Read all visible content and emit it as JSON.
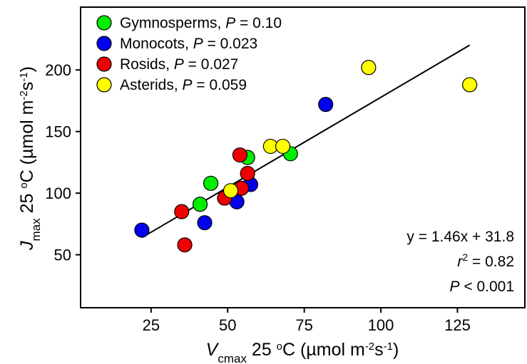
{
  "chart_data": {
    "type": "scatter",
    "x_axis": {
      "label_main": "V",
      "label_sub": "cmax",
      "label_rest_pre": " 25 ",
      "label_deg": "o",
      "label_rest_post": "C (µmol m",
      "label_exp1": "-2",
      "label_mid": "s",
      "label_exp2": "-1",
      "label_close": ")",
      "ticks": [
        25,
        50,
        75,
        100,
        125
      ],
      "range": [
        2,
        147
      ]
    },
    "y_axis": {
      "label_main": "J",
      "label_sub": "max",
      "label_rest_pre": " 25 ",
      "label_deg": "o",
      "label_rest_post": "C (µmol m",
      "label_exp1": "-2",
      "label_mid": "s",
      "label_exp2": "-1",
      "label_close": ")",
      "ticks": [
        50,
        100,
        150,
        200
      ],
      "range": [
        7,
        251
      ]
    },
    "series": [
      {
        "name": "Gymnosperms",
        "p_label": "P",
        "p_value": " = 0.10",
        "color": "#00ee00",
        "points": [
          [
            41,
            91
          ],
          [
            44.5,
            108
          ],
          [
            56.5,
            129
          ],
          [
            70.5,
            132
          ]
        ]
      },
      {
        "name": "Monocots",
        "p_label": "P",
        "p_value": " = 0.023",
        "color": "#0000ee",
        "points": [
          [
            22,
            70
          ],
          [
            42.5,
            76
          ],
          [
            53,
            93
          ],
          [
            57.5,
            107
          ],
          [
            82,
            172
          ]
        ]
      },
      {
        "name": "Rosids",
        "p_label": "P",
        "p_value": " = 0.027",
        "color": "#ee0000",
        "points": [
          [
            35,
            85
          ],
          [
            36,
            58
          ],
          [
            49,
            96
          ],
          [
            54.5,
            104
          ],
          [
            54,
            131
          ],
          [
            56.5,
            116
          ]
        ]
      },
      {
        "name": "Asterids",
        "p_label": "P",
        "p_value": " = 0.059",
        "color": "#ffff00",
        "points": [
          [
            51,
            102
          ],
          [
            64,
            138
          ],
          [
            68,
            138
          ],
          [
            96,
            202
          ],
          [
            129,
            188
          ]
        ]
      }
    ],
    "regression": {
      "slope": 1.46,
      "intercept": 31.8,
      "x_start": 22,
      "x_end": 129
    },
    "stats": {
      "equation": "y = 1.46x + 31.8",
      "r2_symbol": "r",
      "r2_exp": "2",
      "r2_value": " = 0.82",
      "p_symbol": "P",
      "p_value": " < 0.001"
    },
    "legend_position": "top-left",
    "grid": false
  }
}
